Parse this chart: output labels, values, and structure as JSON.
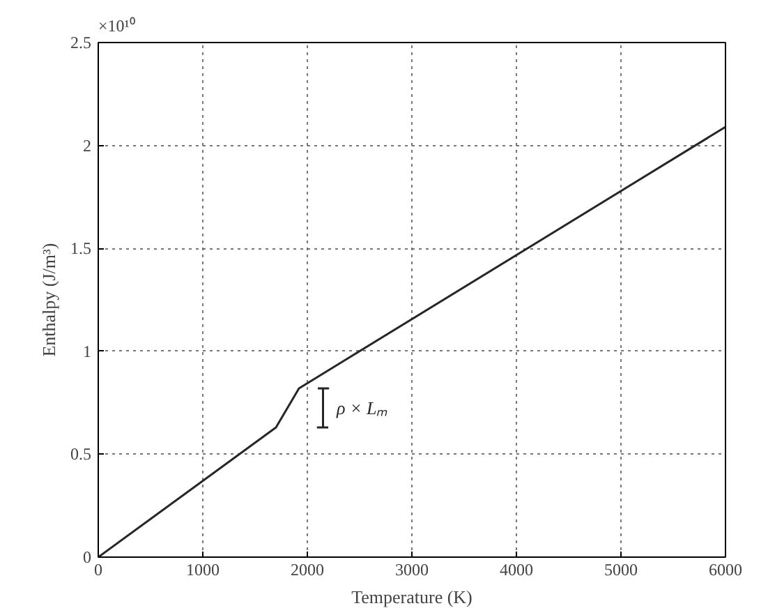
{
  "chart_data": {
    "type": "line",
    "xlabel": "Temperature (K)",
    "ylabel": "Enthalpy (J/m³)",
    "x": [
      0,
      1700,
      1920,
      6000
    ],
    "series": [
      {
        "color": "#262626",
        "values": [
          0,
          0.63,
          0.82,
          2.09
        ]
      },
      {
        "name": "ρ × Lₘ",
        "color": "#262626",
        "x": [
          2100,
          2200,
          2150,
          2150,
          2100,
          2200
        ],
        "values": [
          0.82,
          0.82,
          0.82,
          0.63,
          0.63,
          0.63
        ]
      }
    ],
    "xlim": [
      0,
      6000
    ],
    "xticks": [
      0,
      1000,
      2000,
      3000,
      4000,
      5000,
      6000
    ],
    "ylim": [
      0,
      2.5
    ],
    "yticks": [
      0,
      0.5,
      1,
      1.5,
      2,
      2.5
    ],
    "annotations": [
      "×10¹⁰"
    ],
    "grid": true,
    "line_style": "solid",
    "marker": "none"
  }
}
